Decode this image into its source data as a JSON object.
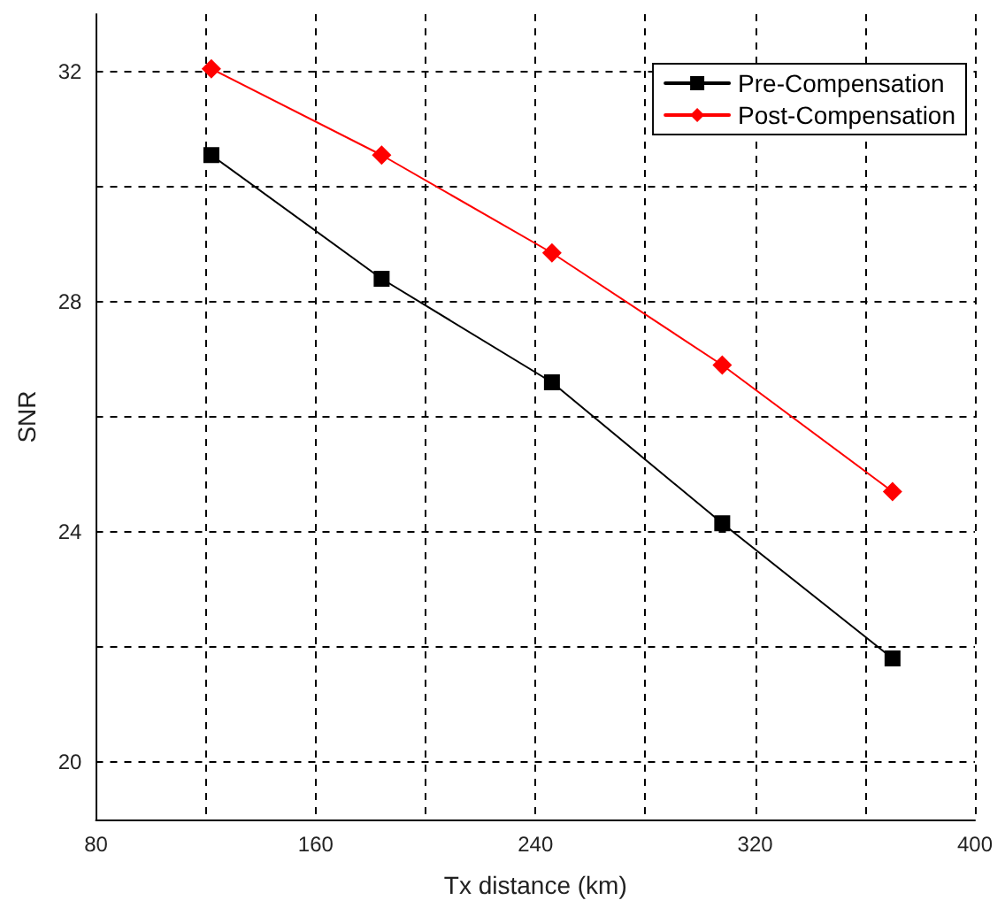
{
  "chart_data": {
    "type": "line",
    "xlabel": "Tx distance (km)",
    "ylabel": "SNR",
    "x": [
      122,
      184,
      246,
      308,
      370
    ],
    "series": [
      {
        "name": "Pre-Compensation",
        "color": "#000000",
        "marker": "square",
        "values": [
          30.55,
          28.4,
          26.6,
          24.15,
          21.8
        ]
      },
      {
        "name": "Post-Compensation",
        "color": "#ff0000",
        "marker": "diamond",
        "values": [
          32.05,
          30.55,
          28.85,
          26.9,
          24.7
        ]
      }
    ],
    "xlim": [
      80,
      400
    ],
    "xticks": [
      80,
      {
        "value": 120,
        "label": null
      },
      160,
      {
        "value": 200,
        "label": null
      },
      240,
      {
        "value": 280,
        "label": null
      },
      320,
      {
        "value": 360,
        "label": null
      },
      400
    ],
    "ylim": [
      19,
      33
    ],
    "yticks": [
      20,
      {
        "value": 22,
        "label": null
      },
      24,
      {
        "value": 26,
        "label": null
      },
      28,
      {
        "value": 30,
        "label": null
      },
      32
    ],
    "grid": true,
    "legend": "top right",
    "line_style": "solid"
  }
}
